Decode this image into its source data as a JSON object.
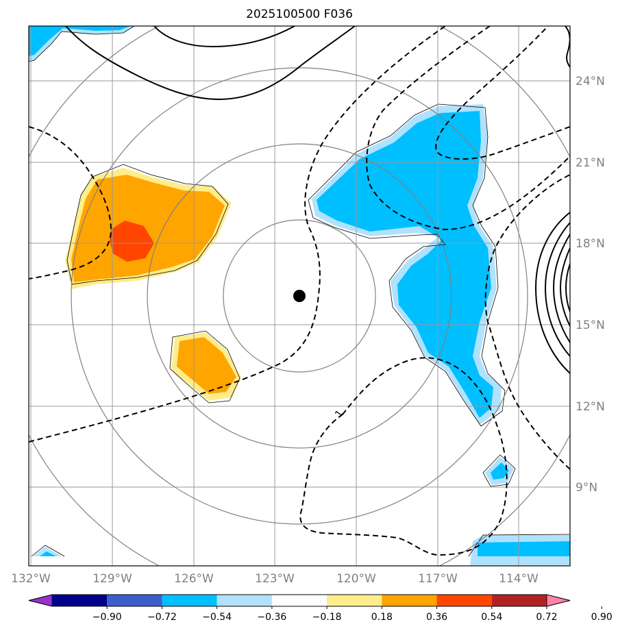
{
  "title": "2025100500 F036",
  "map": {
    "lat_ticks": [
      "24°N",
      "21°N",
      "18°N",
      "15°N",
      "12°N",
      "9°N"
    ],
    "lon_ticks": [
      "132°W",
      "129°W",
      "126°W",
      "123°W",
      "120°W",
      "117°W",
      "114°W"
    ],
    "center_marker": "storm-center",
    "contour_label": "1"
  },
  "colorbar": {
    "levels": [
      "−0.90",
      "−0.72",
      "−0.54",
      "−0.36",
      "−0.18",
      "0.18",
      "0.36",
      "0.54",
      "0.72",
      "0.90"
    ],
    "colors": [
      "#9932cc",
      "#00008b",
      "#3a5fcd",
      "#00bfff",
      "#b0e2ff",
      "#ffffff",
      "#ffec8b",
      "#ffa500",
      "#ff4500",
      "#b22222",
      "#ff82ab"
    ]
  }
}
